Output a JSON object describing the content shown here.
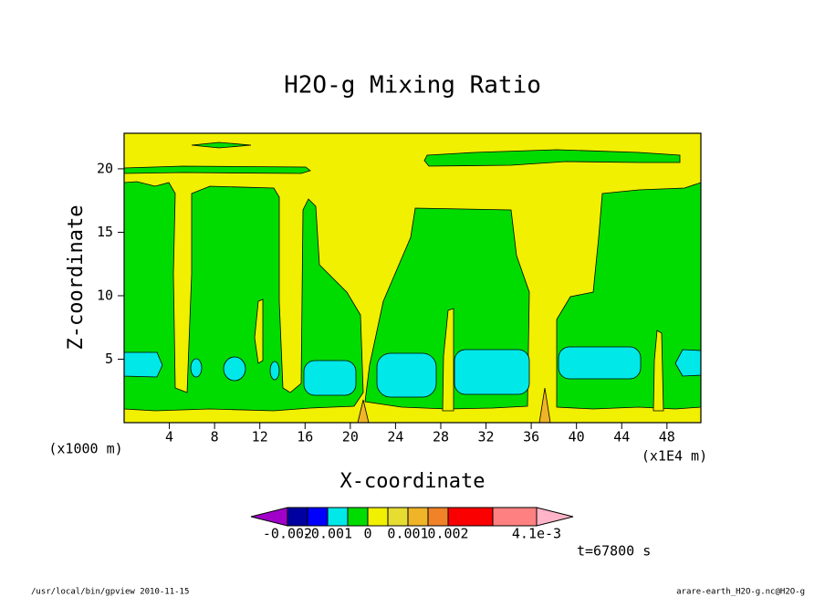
{
  "chart_data": {
    "type": "contour",
    "title": "H2O-g Mixing Ratio",
    "x_label": "X-coordinate",
    "y_label": "Z-coordinate",
    "x_unit_left": "(x1000 m)",
    "x_unit_right": "(x1E4 m)",
    "time_label": "t=67800 s",
    "footer_left": "/usr/local/bin/gpview  2010-11-15",
    "footer_right": "arare-earth_H2O-g.nc@H2O-g",
    "xlim": [
      0,
      51
    ],
    "ylim": [
      0,
      22.8
    ],
    "xticks": [
      4,
      8,
      12,
      16,
      20,
      24,
      28,
      32,
      36,
      40,
      44,
      48
    ],
    "yticks": [
      5,
      10,
      15,
      20
    ],
    "colorbar": {
      "colors": [
        "#a000c8",
        "#0000a0",
        "#0000ff",
        "#00e8e8",
        "#00dc00",
        "#f0f000",
        "#e6dc32",
        "#f0b428",
        "#f08228",
        "#fa0000",
        "#ff8080",
        "#ffb4c8"
      ],
      "ticks": [
        -0.002,
        -0.001,
        0,
        0.001,
        0.002,
        {
          "value": 0.0041,
          "label": "4.1e-3"
        }
      ]
    }
  }
}
